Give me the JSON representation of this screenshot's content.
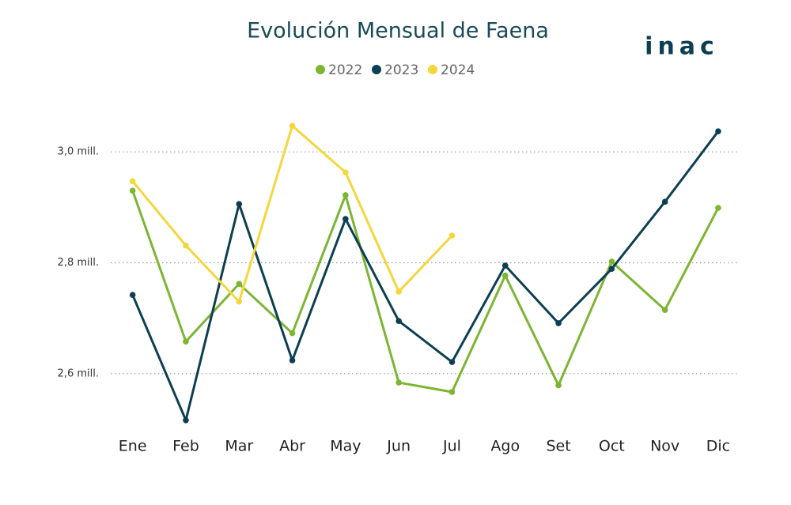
{
  "chart_data": {
    "type": "line",
    "title": "Evolución Mensual de Faena",
    "logo": "inac",
    "categories": [
      "Ene",
      "Feb",
      "Mar",
      "Abr",
      "May",
      "Jun",
      "Jul",
      "Ago",
      "Set",
      "Oct",
      "Nov",
      "Dic"
    ],
    "series": [
      {
        "name": "2022",
        "color": "#7cb532",
        "values": [
          2.93,
          2.658,
          2.762,
          2.673,
          2.922,
          2.584,
          2.567,
          2.777,
          2.579,
          2.802,
          2.715,
          2.899
        ]
      },
      {
        "name": "2023",
        "color": "#0d3f52",
        "values": [
          2.742,
          2.516,
          2.906,
          2.624,
          2.879,
          2.695,
          2.621,
          2.795,
          2.691,
          2.789,
          2.91,
          3.037
        ]
      },
      {
        "name": "2024",
        "color": "#f5d63d",
        "values": [
          2.947,
          2.831,
          2.73,
          3.047,
          2.963,
          2.748,
          2.849,
          null,
          null,
          null,
          null,
          null
        ]
      }
    ],
    "ylim": [
      2.5,
      3.1
    ],
    "yticks": [
      {
        "value": 2.6,
        "label": "2,6 mill."
      },
      {
        "value": 2.8,
        "label": "2,8 mill."
      },
      {
        "value": 3.0,
        "label": "3,0 mill."
      }
    ],
    "grid": true,
    "legend": "top"
  }
}
